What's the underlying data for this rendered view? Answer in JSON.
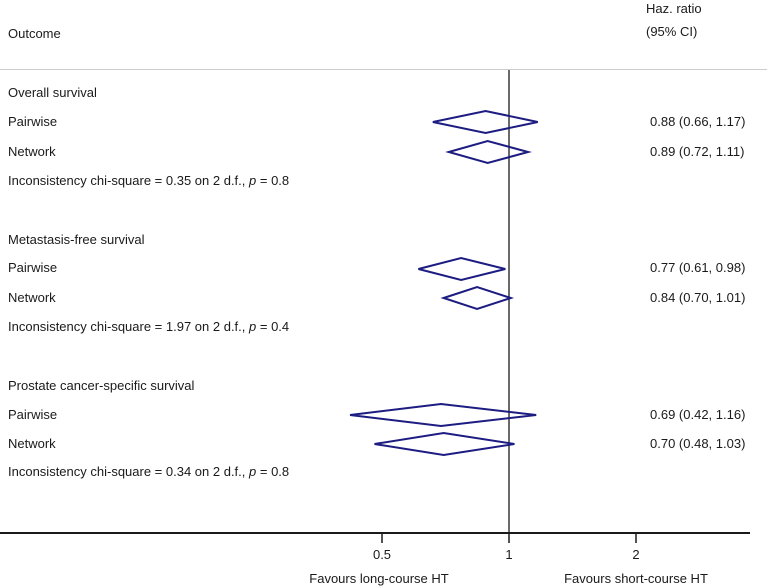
{
  "header": {
    "outcome": "Outcome",
    "hr_line1": "Haz. ratio",
    "hr_line2": "(95% CI)"
  },
  "chart_data": {
    "type": "forest",
    "x_scale": "log",
    "x_ticks": [
      0.5,
      1,
      2
    ],
    "x_tick_labels": [
      "0.5",
      "1",
      "2"
    ],
    "reference_line": 1,
    "footer_left": "Favours long-course HT",
    "footer_right": "Favours short-course HT",
    "sections": [
      {
        "title": "Overall survival",
        "rows": [
          {
            "label": "Pairwise",
            "hr": 0.88,
            "ci_low": 0.66,
            "ci_high": 1.17,
            "display": "0.88 (0.66, 1.17)"
          },
          {
            "label": "Network",
            "hr": 0.89,
            "ci_low": 0.72,
            "ci_high": 1.11,
            "display": "0.89 (0.72, 1.11)"
          }
        ],
        "note": {
          "prefix": "Inconsistency chi-square = 0.35 on 2 d.f., ",
          "p": "p",
          "suffix": " = 0.8"
        }
      },
      {
        "title": "Metastasis-free survival",
        "rows": [
          {
            "label": "Pairwise",
            "hr": 0.77,
            "ci_low": 0.61,
            "ci_high": 0.98,
            "display": "0.77 (0.61, 0.98)"
          },
          {
            "label": "Network",
            "hr": 0.84,
            "ci_low": 0.7,
            "ci_high": 1.01,
            "display": "0.84 (0.70, 1.01)"
          }
        ],
        "note": {
          "prefix": "Inconsistency chi-square = 1.97 on 2 d.f., ",
          "p": "p",
          "suffix": " = 0.4"
        }
      },
      {
        "title": "Prostate cancer-specific survival",
        "rows": [
          {
            "label": "Pairwise",
            "hr": 0.69,
            "ci_low": 0.42,
            "ci_high": 1.16,
            "display": "0.69 (0.42, 1.16)"
          },
          {
            "label": "Network",
            "hr": 0.7,
            "ci_low": 0.48,
            "ci_high": 1.03,
            "display": "0.70 (0.48, 1.03)"
          }
        ],
        "note": {
          "prefix": "Inconsistency chi-square = 0.34 on 2 d.f., ",
          "p": "p",
          "suffix": " = 0.8"
        }
      }
    ]
  },
  "colors": {
    "diamond": "#1c1c82",
    "axis": "#1a1a1a",
    "separator": "#cccccc",
    "text": "#1a1a1a",
    "bg": "#ffffff"
  }
}
